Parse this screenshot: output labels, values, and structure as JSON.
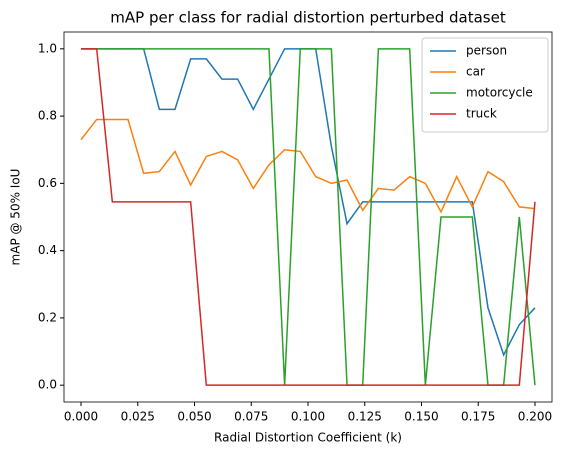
{
  "chart_data": {
    "type": "line",
    "title": "mAP per class for radial distortion perturbed dataset",
    "x_label": "Radial Distortion Coefficient (k)",
    "y_label": "mAP @ 50% IoU",
    "x": [
      0,
      0.0069,
      0.0138,
      0.0207,
      0.0276,
      0.0345,
      0.0414,
      0.0483,
      0.0552,
      0.0621,
      0.069,
      0.0759,
      0.0828,
      0.0897,
      0.0966,
      0.1034,
      0.1103,
      0.1172,
      0.1241,
      0.131,
      0.1379,
      0.1448,
      0.1517,
      0.1586,
      0.1655,
      0.1724,
      0.1793,
      0.1862,
      0.1931,
      0.2
    ],
    "series": [
      {
        "name": "person",
        "color": "#1f77b4",
        "values": [
          1,
          1,
          1,
          1,
          1,
          0.82,
          0.82,
          0.97,
          0.97,
          0.91,
          0.91,
          0.82,
          0.91,
          1,
          1,
          1,
          0.71,
          0.48,
          0.545,
          0.545,
          0.545,
          0.545,
          0.545,
          0.545,
          0.545,
          0.545,
          0.23,
          0.09,
          0.18,
          0.23
        ]
      },
      {
        "name": "car",
        "color": "#ff7f0e",
        "values": [
          0.73,
          0.79,
          0.79,
          0.79,
          0.63,
          0.635,
          0.695,
          0.595,
          0.68,
          0.695,
          0.67,
          0.585,
          0.655,
          0.7,
          0.695,
          0.62,
          0.6,
          0.61,
          0.52,
          0.585,
          0.58,
          0.62,
          0.6,
          0.515,
          0.62,
          0.53,
          0.635,
          0.605,
          0.53,
          0.525
        ]
      },
      {
        "name": "motorcycle",
        "color": "#2ca02c",
        "values": [
          1,
          1,
          1,
          1,
          1,
          1,
          1,
          1,
          1,
          1,
          1,
          1,
          1,
          0,
          1,
          1,
          1,
          0,
          0,
          1,
          1,
          1,
          0,
          0.5,
          0.5,
          0.5,
          0,
          0,
          0.5,
          0
        ]
      },
      {
        "name": "truck",
        "color": "#d62728",
        "values": [
          1,
          1,
          0.545,
          0.545,
          0.545,
          0.545,
          0.545,
          0.545,
          0,
          0,
          0,
          0,
          0,
          0,
          0,
          0,
          0,
          0,
          0,
          0,
          0,
          0,
          0,
          0,
          0,
          0,
          0,
          0,
          0,
          0.545
        ]
      }
    ],
    "xlim": [
      -0.0075,
      0.2075
    ],
    "ylim": [
      -0.05,
      1.05
    ],
    "xticks": [
      {
        "value": 0,
        "label": "0.000"
      },
      {
        "value": 0.025,
        "label": "0.025"
      },
      {
        "value": 0.05,
        "label": "0.050"
      },
      {
        "value": 0.075,
        "label": "0.075"
      },
      {
        "value": 0.1,
        "label": "0.100"
      },
      {
        "value": 0.125,
        "label": "0.125"
      },
      {
        "value": 0.15,
        "label": "0.150"
      },
      {
        "value": 0.175,
        "label": "0.175"
      },
      {
        "value": 0.2,
        "label": "0.200"
      }
    ],
    "yticks": [
      {
        "value": 0,
        "label": "0.0"
      },
      {
        "value": 0.2,
        "label": "0.2"
      },
      {
        "value": 0.4,
        "label": "0.4"
      },
      {
        "value": 0.6,
        "label": "0.6"
      },
      {
        "value": 0.8,
        "label": "0.8"
      },
      {
        "value": 1,
        "label": "1.0"
      }
    ],
    "legend": "upper right"
  }
}
